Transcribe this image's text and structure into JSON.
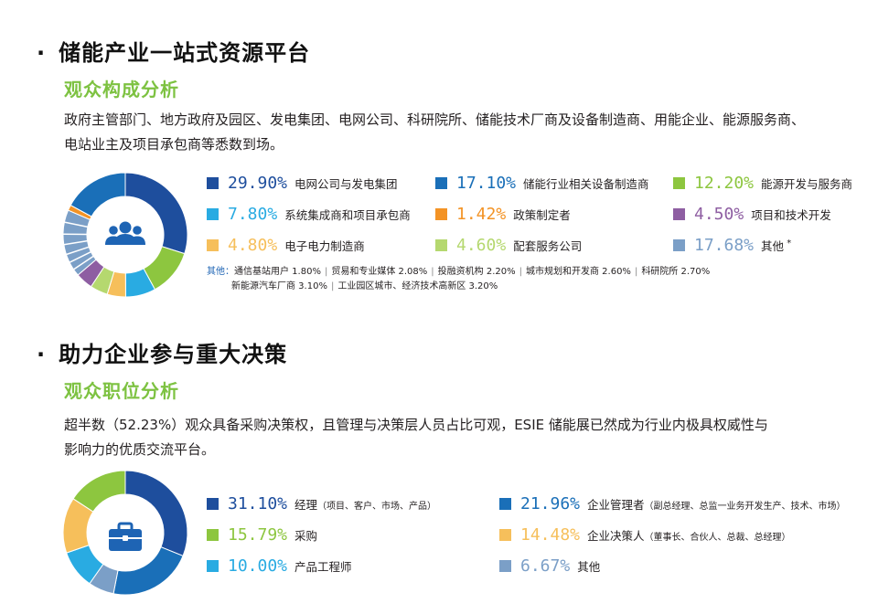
{
  "section1": {
    "bullet": "·",
    "title": "储能产业一站式资源平台",
    "subtitle": "观众构成分析",
    "paragraph_line1": "政府主管部门、地方政府及园区、发电集团、电网公司、科研院所、储能技术厂商及设备制造商、用能企业、能源服务商、",
    "paragraph_line2": "电站业主及项目承包商等悉数到场。",
    "others_label": "其他：",
    "others_line1": [
      "通信基站用户 1.80%",
      "贸易和专业媒体 2.08%",
      "投融资机构 2.20%",
      "城市规划和开发商 2.60%",
      "科研院所 2.70%"
    ],
    "others_line2": [
      "新能源汽车厂商 3.10%",
      "工业园区城市、经济技术高新区 3.20%"
    ],
    "legend_mark": "*"
  },
  "section2": {
    "bullet": "·",
    "title": "助力企业参与重大决策",
    "subtitle": "观众职位分析",
    "paragraph_line1": "超半数（52.23%）观众具备采购决策权，且管理与决策层人员占比可观，ESIE 储能展已然成为行业内极具权威性与",
    "paragraph_line2": "影响力的优质交流平台。"
  },
  "icons": {
    "chart1_center": "people-group-icon",
    "chart2_center": "briefcase-icon"
  },
  "chart_data": [
    {
      "type": "pie",
      "donut": true,
      "title": "观众构成分析",
      "slices": [
        {
          "label": "电网公司与发电集团",
          "value": 29.9,
          "display": "29.90%",
          "color": "#1e4e9d"
        },
        {
          "label": "能源开发与服务商",
          "value": 12.2,
          "display": "12.20%",
          "color": "#8dc63f"
        },
        {
          "label": "系统集成商和项目承包商",
          "value": 7.8,
          "display": "7.80%",
          "color": "#29abe2"
        },
        {
          "label": "电子电力制造商",
          "value": 4.8,
          "display": "4.80%",
          "color": "#f6bf5b"
        },
        {
          "label": "配套服务公司",
          "value": 4.6,
          "display": "4.60%",
          "color": "#b5d86f"
        },
        {
          "label": "项目和技术开发",
          "value": 4.5,
          "display": "4.50%",
          "color": "#8e5ea2"
        },
        {
          "label": "其他",
          "value": 17.68,
          "display": "17.68%",
          "color": "#7b9fc7"
        },
        {
          "label": "政策制定者",
          "value": 1.42,
          "display": "1.42%",
          "color": "#f39325"
        },
        {
          "label": "储能行业相关设备制造商",
          "value": 17.1,
          "display": "17.10%",
          "color": "#1a6fb8"
        }
      ],
      "legend_order": [
        [
          "电网公司与发电集团",
          "储能行业相关设备制造商",
          "能源开发与服务商"
        ],
        [
          "系统集成商和项目承包商",
          "政策制定者",
          "项目和技术开发"
        ],
        [
          "电子电力制造商",
          "配套服务公司",
          "其他"
        ]
      ],
      "other_breakdown": [
        {
          "label": "通信基站用户",
          "value": 1.8
        },
        {
          "label": "贸易和专业媒体",
          "value": 2.08
        },
        {
          "label": "投融资机构",
          "value": 2.2
        },
        {
          "label": "城市规划和开发商",
          "value": 2.6
        },
        {
          "label": "科研院所",
          "value": 2.7
        },
        {
          "label": "新能源汽车厂商",
          "value": 3.1
        },
        {
          "label": "工业园区城市、经济技术高新区",
          "value": 3.2
        }
      ]
    },
    {
      "type": "pie",
      "donut": true,
      "title": "观众职位分析",
      "slices": [
        {
          "label": "经理",
          "detail": "（项目、客户、市场、产品）",
          "value": 31.1,
          "display": "31.10%",
          "color": "#1e4e9d"
        },
        {
          "label": "企业管理者",
          "detail": "（副总经理、总监一业务开发生产、技术、市场）",
          "value": 21.96,
          "display": "21.96%",
          "color": "#1a6fb8"
        },
        {
          "label": "其他",
          "detail": "",
          "value": 6.67,
          "display": "6.67%",
          "color": "#7b9fc7"
        },
        {
          "label": "产品工程师",
          "detail": "",
          "value": 10.0,
          "display": "10.00%",
          "color": "#29abe2"
        },
        {
          "label": "企业决策人",
          "detail": "（董事长、合伙人、总裁、总经理）",
          "value": 14.48,
          "display": "14.48%",
          "color": "#f6bf5b"
        },
        {
          "label": "采购",
          "detail": "",
          "value": 15.79,
          "display": "15.79%",
          "color": "#8dc63f"
        }
      ],
      "legend_order": [
        [
          "经理",
          "企业管理者"
        ],
        [
          "采购",
          "企业决策人"
        ],
        [
          "产品工程师",
          "其他"
        ]
      ]
    }
  ]
}
